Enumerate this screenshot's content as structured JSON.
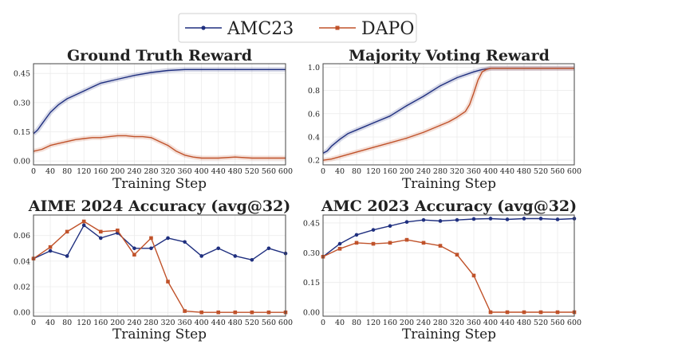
{
  "legend": {
    "entries": [
      {
        "name": "AMC23",
        "color": "#1f2f7f",
        "marker": "circle"
      },
      {
        "name": "DAPO",
        "color": "#c0522a",
        "marker": "square"
      }
    ]
  },
  "chart_data": [
    {
      "type": "line",
      "title": "Ground Truth Reward",
      "xlabel": "Training Step",
      "ylabel": "",
      "xlim": [
        0,
        600
      ],
      "ylim": [
        -0.02,
        0.5
      ],
      "xticks": [
        0,
        40,
        80,
        120,
        160,
        200,
        240,
        280,
        320,
        360,
        400,
        440,
        480,
        520,
        560,
        600
      ],
      "yticks": [
        "0.00",
        "0.15",
        "0.30",
        "0.45"
      ],
      "grid": true,
      "markers": false,
      "series": [
        {
          "name": "AMC23",
          "x": [
            0,
            10,
            20,
            30,
            40,
            60,
            80,
            100,
            120,
            140,
            160,
            200,
            240,
            280,
            320,
            360,
            400,
            480,
            560,
            600
          ],
          "y": [
            0.14,
            0.16,
            0.19,
            0.22,
            0.25,
            0.29,
            0.32,
            0.34,
            0.36,
            0.38,
            0.4,
            0.42,
            0.44,
            0.455,
            0.465,
            0.47,
            0.47,
            0.47,
            0.47,
            0.47
          ]
        },
        {
          "name": "DAPO",
          "x": [
            0,
            20,
            40,
            60,
            80,
            100,
            120,
            140,
            160,
            180,
            200,
            220,
            240,
            260,
            280,
            300,
            320,
            340,
            360,
            380,
            400,
            440,
            480,
            520,
            560,
            600
          ],
          "y": [
            0.05,
            0.06,
            0.08,
            0.09,
            0.1,
            0.11,
            0.115,
            0.12,
            0.12,
            0.125,
            0.13,
            0.13,
            0.125,
            0.125,
            0.12,
            0.1,
            0.08,
            0.05,
            0.03,
            0.02,
            0.015,
            0.015,
            0.02,
            0.015,
            0.015,
            0.015
          ]
        }
      ]
    },
    {
      "type": "line",
      "title": "Majority Voting Reward",
      "xlabel": "Training Step",
      "ylabel": "",
      "xlim": [
        0,
        600
      ],
      "ylim": [
        0.16,
        1.03
      ],
      "xticks": [
        0,
        40,
        80,
        120,
        160,
        200,
        240,
        280,
        320,
        360,
        400,
        440,
        480,
        520,
        560,
        600
      ],
      "yticks": [
        "0.2",
        "0.4",
        "0.6",
        "0.8",
        "1.0"
      ],
      "grid": true,
      "markers": false,
      "series": [
        {
          "name": "AMC23",
          "x": [
            0,
            10,
            20,
            40,
            60,
            80,
            100,
            120,
            160,
            200,
            240,
            280,
            320,
            360,
            380,
            400,
            440,
            480,
            560,
            600
          ],
          "y": [
            0.26,
            0.28,
            0.32,
            0.38,
            0.43,
            0.46,
            0.49,
            0.52,
            0.58,
            0.67,
            0.75,
            0.84,
            0.91,
            0.96,
            0.98,
            0.99,
            0.99,
            0.99,
            0.99,
            0.99
          ]
        },
        {
          "name": "DAPO",
          "x": [
            0,
            20,
            40,
            80,
            120,
            160,
            200,
            240,
            280,
            300,
            320,
            340,
            350,
            360,
            370,
            380,
            390,
            400,
            440,
            480,
            560,
            600
          ],
          "y": [
            0.2,
            0.21,
            0.23,
            0.27,
            0.31,
            0.35,
            0.39,
            0.44,
            0.5,
            0.53,
            0.57,
            0.62,
            0.68,
            0.78,
            0.89,
            0.96,
            0.98,
            0.99,
            0.99,
            0.99,
            0.99,
            0.99
          ]
        }
      ]
    },
    {
      "type": "line",
      "title": "AIME 2024 Accuracy (avg@32)",
      "xlabel": "Training Step",
      "ylabel": "",
      "xlim": [
        0,
        600
      ],
      "ylim": [
        -0.003,
        0.076
      ],
      "xticks": [
        0,
        40,
        80,
        120,
        160,
        200,
        240,
        280,
        320,
        360,
        400,
        440,
        480,
        520,
        560,
        600
      ],
      "yticks": [
        "0.00",
        "0.02",
        "0.04",
        "0.06"
      ],
      "grid": true,
      "markers": true,
      "series": [
        {
          "name": "AMC23",
          "x": [
            0,
            40,
            80,
            120,
            160,
            200,
            240,
            280,
            320,
            360,
            400,
            440,
            480,
            520,
            560,
            600
          ],
          "y": [
            0.042,
            0.048,
            0.044,
            0.068,
            0.058,
            0.062,
            0.05,
            0.05,
            0.058,
            0.055,
            0.044,
            0.05,
            0.044,
            0.041,
            0.05,
            0.046
          ]
        },
        {
          "name": "DAPO",
          "x": [
            0,
            40,
            80,
            120,
            160,
            200,
            240,
            280,
            320,
            360,
            400,
            440,
            480,
            520,
            560,
            600
          ],
          "y": [
            0.042,
            0.051,
            0.063,
            0.071,
            0.063,
            0.064,
            0.045,
            0.058,
            0.024,
            0.001,
            0.0,
            0.0,
            0.0,
            0.0,
            0.0,
            0.0
          ]
        }
      ]
    },
    {
      "type": "line",
      "title": "AMC 2023 Accuracy (avg@32)",
      "xlabel": "Training Step",
      "ylabel": "",
      "xlim": [
        0,
        600
      ],
      "ylim": [
        -0.02,
        0.49
      ],
      "xticks": [
        0,
        40,
        80,
        120,
        160,
        200,
        240,
        280,
        320,
        360,
        400,
        440,
        480,
        520,
        560,
        600
      ],
      "yticks": [
        "0.00",
        "0.15",
        "0.30",
        "0.45"
      ],
      "grid": true,
      "markers": true,
      "series": [
        {
          "name": "AMC23",
          "x": [
            0,
            40,
            80,
            120,
            160,
            200,
            240,
            280,
            320,
            360,
            400,
            440,
            480,
            520,
            560,
            600
          ],
          "y": [
            0.28,
            0.345,
            0.39,
            0.415,
            0.435,
            0.455,
            0.465,
            0.46,
            0.465,
            0.47,
            0.472,
            0.468,
            0.472,
            0.472,
            0.468,
            0.472
          ]
        },
        {
          "name": "DAPO",
          "x": [
            0,
            40,
            80,
            120,
            160,
            200,
            240,
            280,
            320,
            360,
            400,
            440,
            480,
            520,
            560,
            600
          ],
          "y": [
            0.28,
            0.32,
            0.35,
            0.345,
            0.35,
            0.365,
            0.35,
            0.335,
            0.29,
            0.185,
            0.0,
            0.0,
            0.0,
            0.0,
            0.0,
            0.0
          ]
        }
      ]
    }
  ]
}
